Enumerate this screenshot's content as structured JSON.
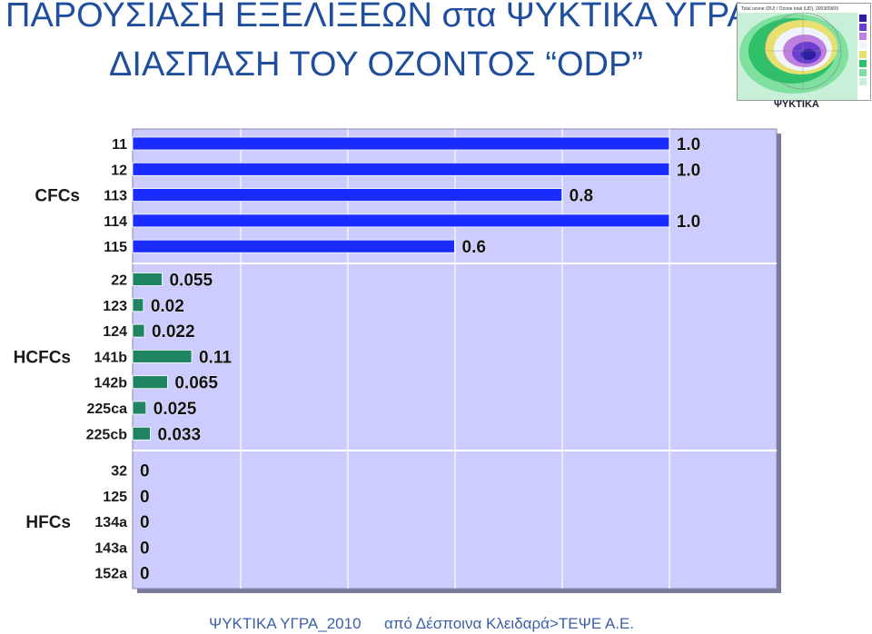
{
  "header": {
    "title_line1": "ΠΑΡΟΥΣΙΑΣΗ ΕΞΕΛΙΞΕΩΝ στα ΨΥΚΤΙΚΑ ΥΓΡΑ",
    "title_line2": "ΔΙΑΣΠΑΣΗ ΤΟΥ ΟΖΟΝΤΟΣ “ODP”"
  },
  "ozone_map": {
    "caption_text": "Total ozone (DU) / Ozone total (UD), 2003/09/09",
    "below_caption": "ΨΥΚΤΙΚΑ"
  },
  "chart_data": {
    "type": "bar",
    "orientation": "horizontal",
    "title": "",
    "xlabel": "",
    "ylabel": "",
    "xlim": [
      0,
      1.2
    ],
    "grid": true,
    "groups": [
      {
        "name": "CFCs",
        "color": "#1a2cff",
        "categories": [
          "11",
          "12",
          "113",
          "114",
          "115"
        ],
        "values": [
          1.0,
          1.0,
          0.8,
          1.0,
          0.6
        ],
        "labels": [
          "1.0",
          "1.0",
          "0.8",
          "1.0",
          "0.6"
        ]
      },
      {
        "name": "HCFCs",
        "color": "#1e8462",
        "categories": [
          "22",
          "123",
          "124",
          "141b",
          "142b",
          "225ca",
          "225cb"
        ],
        "values": [
          0.055,
          0.02,
          0.022,
          0.11,
          0.065,
          0.025,
          0.033
        ],
        "labels": [
          "0.055",
          "0.02",
          "0.022",
          "0.11",
          "0.065",
          "0.025",
          "0.033"
        ]
      },
      {
        "name": "HFCs",
        "color": "#1e8462",
        "categories": [
          "32",
          "125",
          "134a",
          "143a",
          "152a"
        ],
        "values": [
          0,
          0,
          0,
          0,
          0
        ],
        "labels": [
          "0",
          "0",
          "0",
          "0",
          "0"
        ]
      }
    ]
  },
  "colors": {
    "title": "#1f4e9c",
    "plot_background": "#ccccff",
    "grid": "#ffffff",
    "footer": "#3d5fa8"
  },
  "footer": {
    "left": "ΨΥΚΤΙΚΑ ΥΓΡΑ_2010",
    "right": "από Δέσποινα Κλειδαρά>ΤΕΨΕ Α.Ε."
  }
}
